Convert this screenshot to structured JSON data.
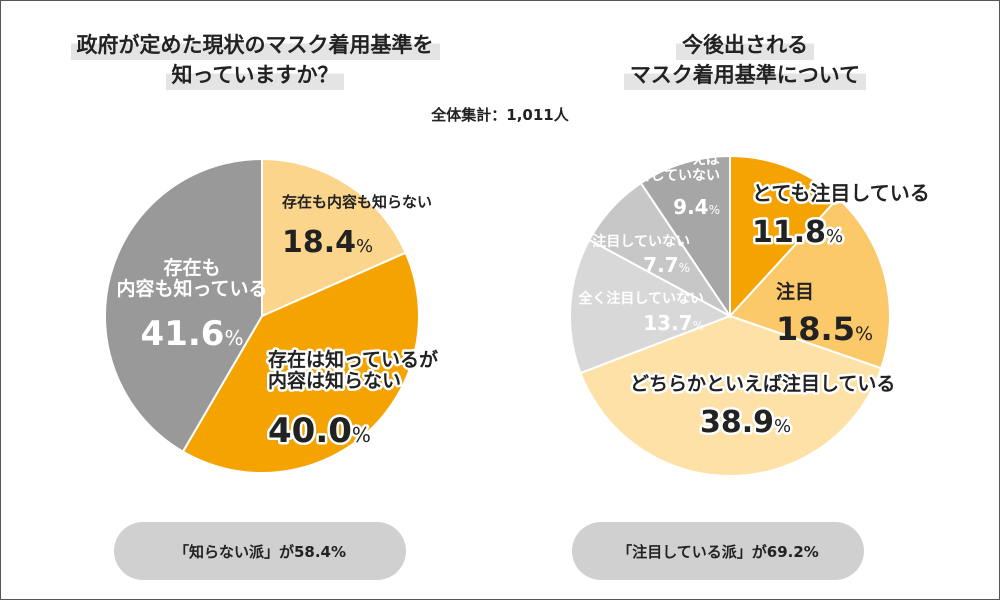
{
  "summary": "全体集計：1,011人",
  "colors": {
    "gray_dark": "#999999",
    "gray_light": "#c7c7c7",
    "gray_lighter": "#d8d8d8",
    "orange": "#f5a300",
    "orange_light": "#fcc96a",
    "cream": "#fde1a7"
  },
  "chart_data": [
    {
      "type": "pie",
      "title_lines": [
        "政府が定めた現状のマスク着用基準を",
        "知っていますか？"
      ],
      "slices": [
        {
          "label_lines": [
            "存在も内容も知らない"
          ],
          "value": 18.4,
          "value_text": "18.4",
          "color": "#fcd58c"
        },
        {
          "label_lines": [
            "存在は知っているが",
            "内容は知らない"
          ],
          "value": 40.0,
          "value_text": "40.0",
          "color": "#f5a300"
        },
        {
          "label_lines": [
            "存在も",
            "内容も知っている"
          ],
          "value": 41.6,
          "value_text": "41.6",
          "color": "#999999"
        }
      ],
      "footer": "「知らない派」が58.4%"
    },
    {
      "type": "pie",
      "title_lines": [
        "今後出される",
        "マスク着用基準について"
      ],
      "slices": [
        {
          "label_lines": [
            "とても注目している"
          ],
          "value": 11.8,
          "value_text": "11.8",
          "color": "#f5a300"
        },
        {
          "label_lines": [
            "注目"
          ],
          "value": 18.5,
          "value_text": "18.5",
          "color": "#fcc96a"
        },
        {
          "label_lines": [
            "どちらかといえば注目している"
          ],
          "value": 38.9,
          "value_text": "38.9",
          "color": "#fde1a7"
        },
        {
          "label_lines": [
            "全く注目していない"
          ],
          "value": 13.7,
          "value_text": "13.7",
          "color": "#d8d8d8"
        },
        {
          "label_lines": [
            "注目していない"
          ],
          "value": 7.7,
          "value_text": "7.7",
          "color": "#c7c7c7"
        },
        {
          "label_lines": [
            "どちらかといえば",
            "注目していない"
          ],
          "value": 9.4,
          "value_text": "9.4",
          "color": "#a6a6a6"
        }
      ],
      "footer": "「注目している派」が69.2%"
    }
  ],
  "percent_sign": "%"
}
